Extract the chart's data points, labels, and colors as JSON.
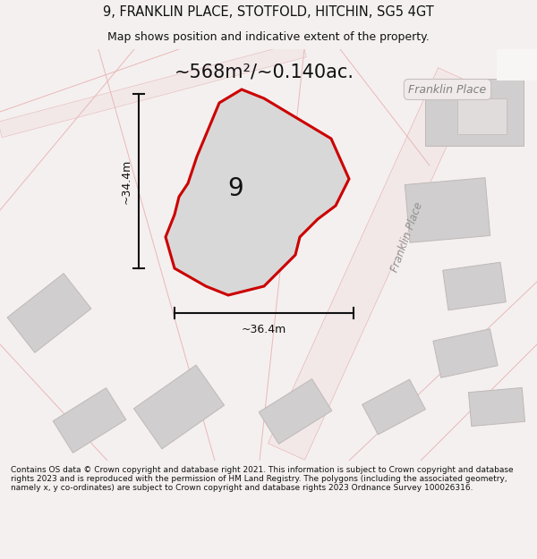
{
  "title": "9, FRANKLIN PLACE, STOTFOLD, HITCHIN, SG5 4GT",
  "subtitle": "Map shows position and indicative extent of the property.",
  "area_text": "~568m²/~0.140ac.",
  "dim_vertical": "~34.4m",
  "dim_horizontal": "~36.4m",
  "label_number": "9",
  "road_label_upper": "Franklin Place",
  "road_label_diag": "Franklin Place",
  "footer": "Contains OS data © Crown copyright and database right 2021. This information is subject to Crown copyright and database rights 2023 and is reproduced with the permission of HM Land Registry. The polygons (including the associated geometry, namely x, y co-ordinates) are subject to Crown copyright and database rights 2023 Ordnance Survey 100026316.",
  "bg_color": "#f5f0f0",
  "map_bg": "#f8f5f5",
  "plot_fill": "#d8d8d8",
  "plot_edge": "#cc0000",
  "road_line_color": "#e8b8b8",
  "building_fill": "#d0cece",
  "building_edge": "#c0b8b8",
  "dim_line_color": "#111111",
  "text_color": "#111111",
  "road_text_color": "#888888",
  "white": "#ffffff"
}
